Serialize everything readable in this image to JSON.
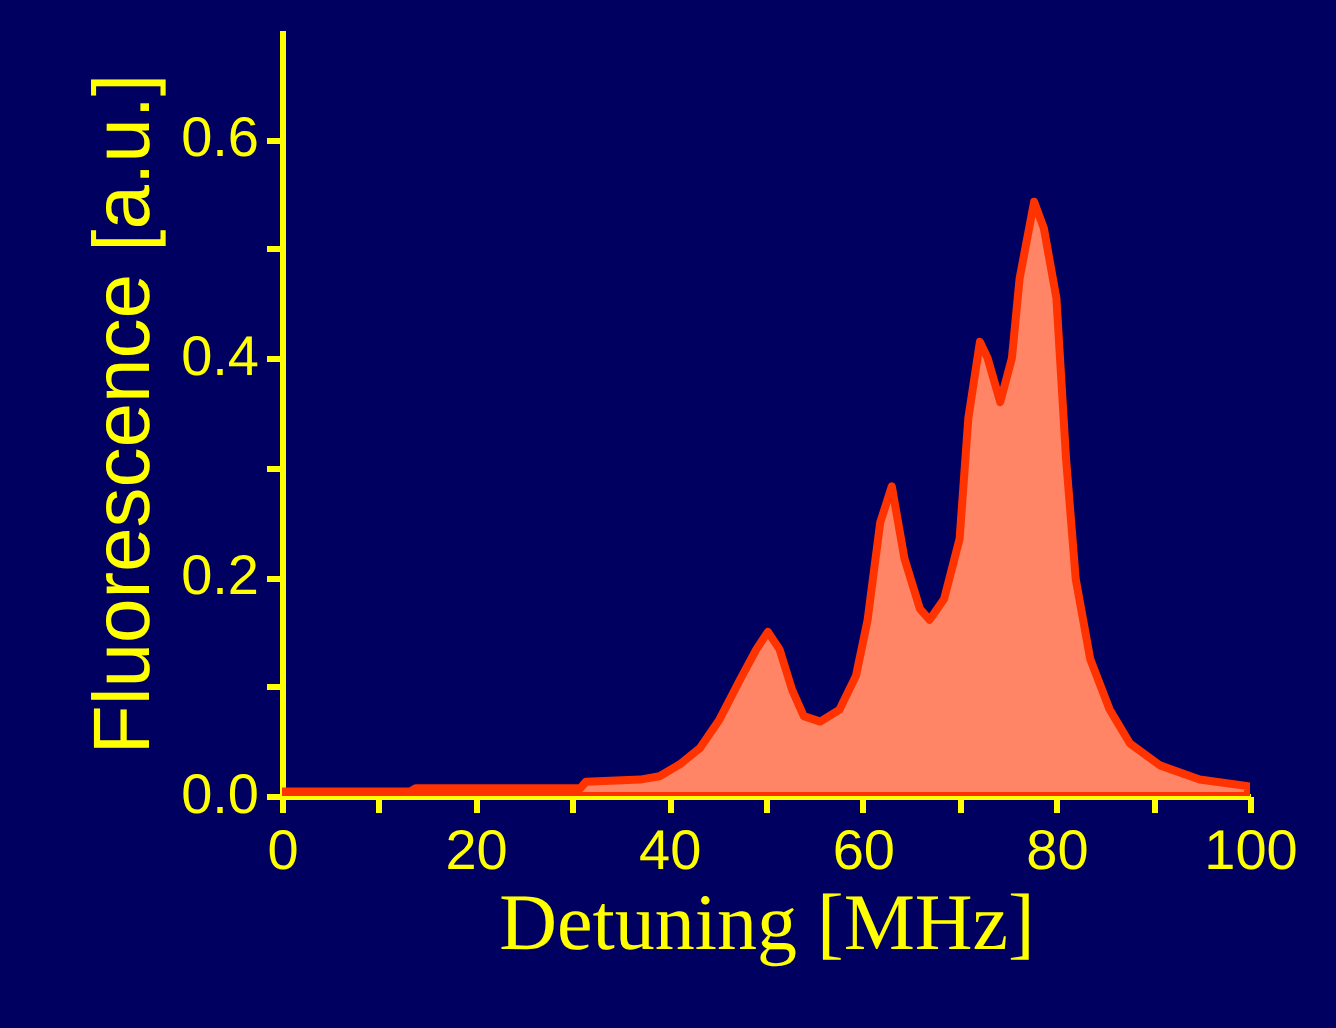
{
  "chart_data": {
    "type": "area",
    "xlabel": "Detuning [MHz]",
    "ylabel": "Fluorescence [a.u.]",
    "xlim": [
      0,
      100
    ],
    "xticks": [
      0,
      {
        "value": 10,
        "label": null
      },
      20,
      {
        "value": 30,
        "label": null
      },
      40,
      {
        "value": 50,
        "label": null
      },
      60,
      {
        "value": 70,
        "label": null
      },
      80,
      {
        "value": 90,
        "label": null
      },
      100
    ],
    "ylim": [
      0,
      0.7
    ],
    "yticks": [
      {
        "value": 0,
        "label": "0.0"
      },
      {
        "value": 0.1,
        "label": null
      },
      {
        "value": 0.2,
        "label": "0.2"
      },
      {
        "value": 0.3,
        "label": null
      },
      {
        "value": 0.4,
        "label": "0.4"
      },
      {
        "value": 0.5,
        "label": null
      },
      {
        "value": 0.6,
        "label": "0.6"
      }
    ],
    "grid": false,
    "x": [
      0,
      13.2,
      13.8,
      30.8,
      31.4,
      37,
      39,
      41.1,
      43.2,
      45.2,
      47.3,
      49,
      50.2,
      51.4,
      52.7,
      53.9,
      55.6,
      57.6,
      59.3,
      60.5,
      61.8,
      63,
      64.3,
      65.9,
      66.9,
      68.4,
      70,
      70.9,
      72.1,
      72.9,
      74.2,
      75.4,
      76.2,
      77.7,
      78.7,
      80,
      81,
      82,
      83.5,
      85.5,
      87.6,
      90.7,
      94.8,
      99.8
    ],
    "series": [
      {
        "color": "#ff3300",
        "values": [
          0.004,
          0.004,
          0.007,
          0.007,
          0.013,
          0.015,
          0.018,
          0.029,
          0.044,
          0.07,
          0.106,
          0.134,
          0.15,
          0.134,
          0.097,
          0.073,
          0.068,
          0.079,
          0.11,
          0.161,
          0.25,
          0.283,
          0.217,
          0.171,
          0.161,
          0.18,
          0.235,
          0.345,
          0.415,
          0.4,
          0.36,
          0.4,
          0.473,
          0.543,
          0.519,
          0.455,
          0.308,
          0.198,
          0.125,
          0.079,
          0.048,
          0.028,
          0.015,
          0.009
        ]
      }
    ]
  }
}
